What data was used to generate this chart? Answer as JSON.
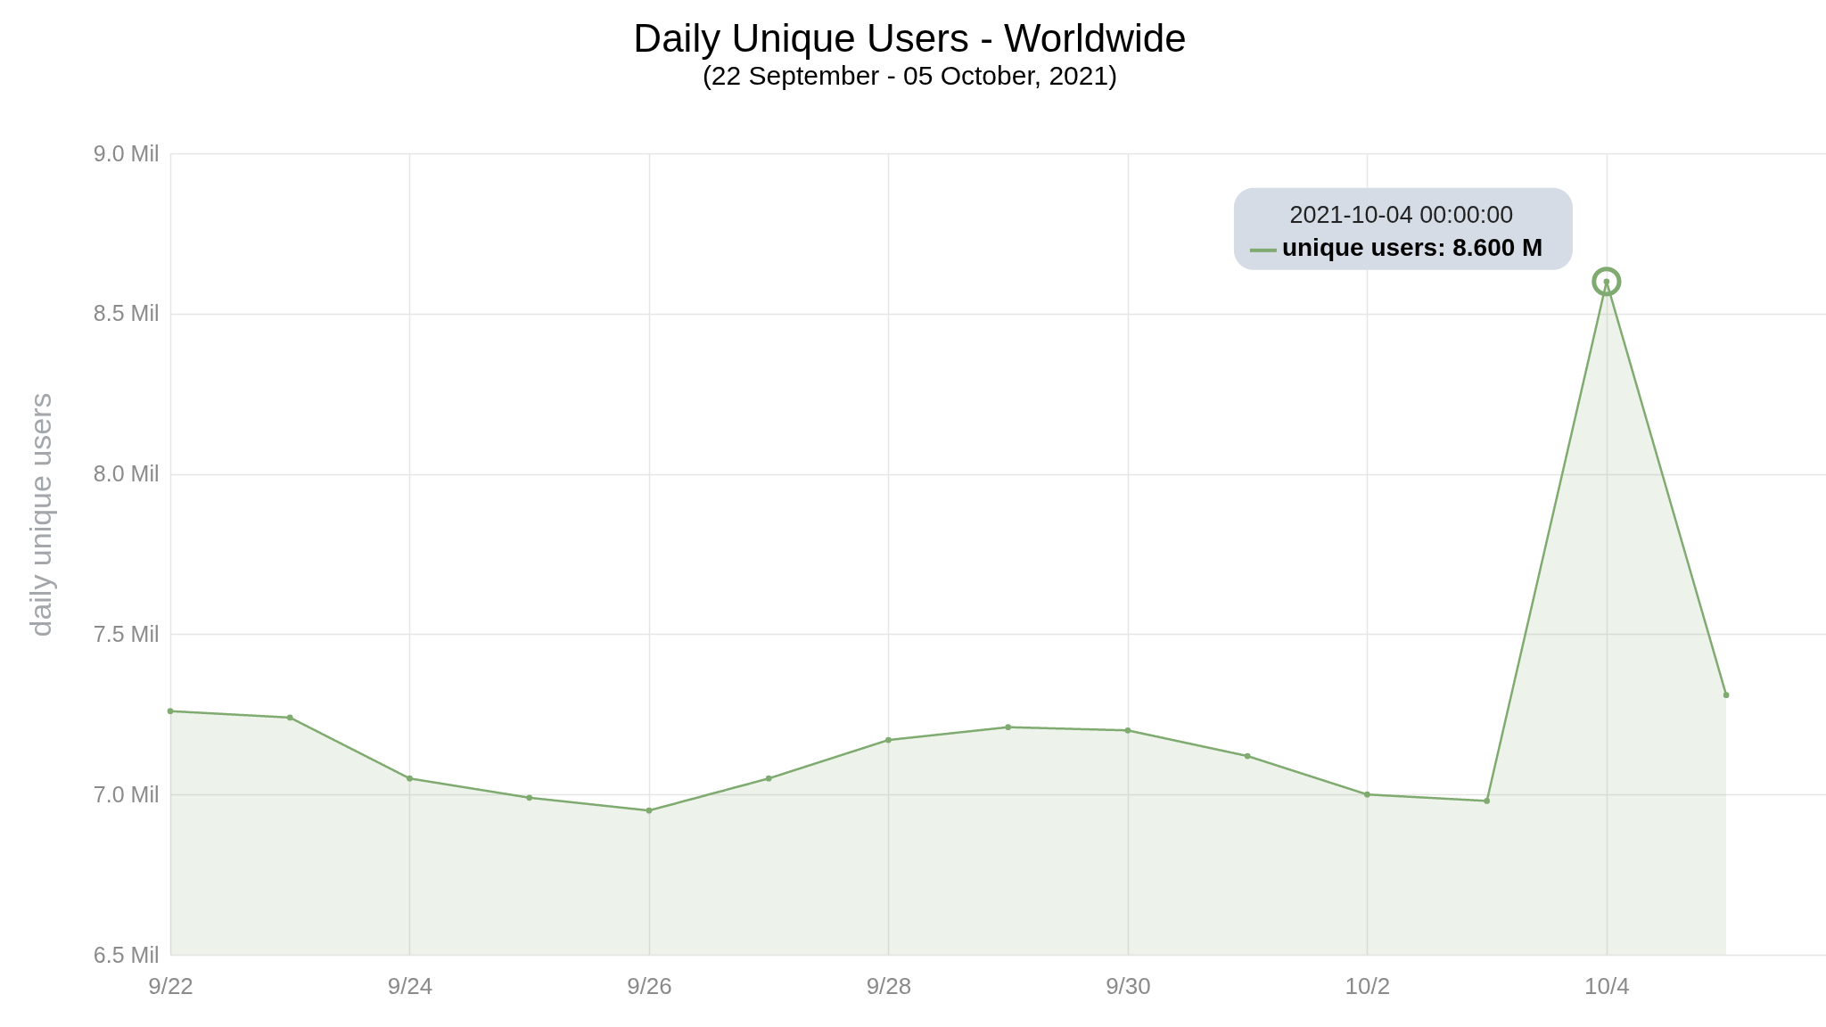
{
  "chart_data": {
    "type": "area",
    "title": "Daily Unique Users - Worldwide",
    "subtitle": "(22 September - 05 October, 2021)",
    "ylabel": "daily unique users",
    "x": [
      "2021-09-22",
      "2021-09-23",
      "2021-09-24",
      "2021-09-25",
      "2021-09-26",
      "2021-09-27",
      "2021-09-28",
      "2021-09-29",
      "2021-09-30",
      "2021-10-01",
      "2021-10-02",
      "2021-10-03",
      "2021-10-04",
      "2021-10-05"
    ],
    "series": [
      {
        "color": "#80ab70",
        "values": [
          7.26,
          7.24,
          7.05,
          6.99,
          6.95,
          7.05,
          7.17,
          7.21,
          7.2,
          7.12,
          7.0,
          6.98,
          8.6,
          7.31
        ]
      }
    ],
    "xlim": [
      "2021-09-22",
      "2021-10-05T20:00"
    ],
    "xticks": [
      {
        "value": "2021-09-22",
        "label": "9/22"
      },
      {
        "value": "2021-09-24",
        "label": "9/24"
      },
      {
        "value": "2021-09-26",
        "label": "9/26"
      },
      {
        "value": "2021-09-28",
        "label": "9/28"
      },
      {
        "value": "2021-09-30",
        "label": "9/30"
      },
      {
        "value": "2021-10-02",
        "label": "10/2"
      },
      {
        "value": "2021-10-04",
        "label": "10/4"
      }
    ],
    "ylim": [
      6.5,
      9.0
    ],
    "yticks": [
      {
        "value": 6.5,
        "label": "6.5 Mil"
      },
      {
        "value": 7.0,
        "label": "7.0 Mil"
      },
      {
        "value": 7.5,
        "label": "7.5 Mil"
      },
      {
        "value": 8.0,
        "label": "8.0 Mil"
      },
      {
        "value": 8.5,
        "label": "8.5 Mil"
      },
      {
        "value": 9.0,
        "label": "9.0 Mil"
      }
    ],
    "annotations": [
      "2021-10-04 00:00:00",
      {
        "text": "unique users: 8.600 M",
        "x": "2021-10-04",
        "y": 8.6
      }
    ],
    "grid": true,
    "marker": "circle"
  }
}
